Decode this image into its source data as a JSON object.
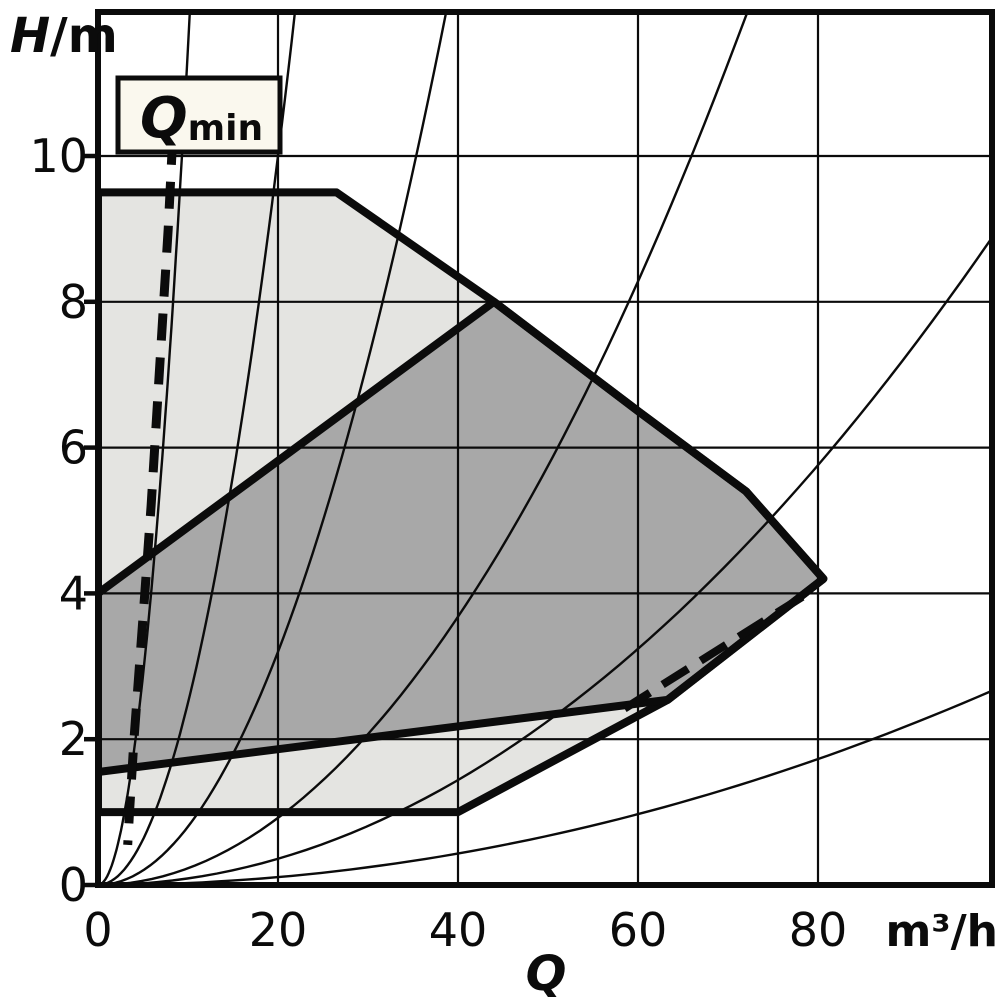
{
  "axes": {
    "y_title": {
      "symbol": "H",
      "unit": "/m"
    },
    "x_title": {
      "symbol": "Q",
      "unit": "m³/h"
    },
    "y_ticks": [
      0,
      2,
      4,
      6,
      8,
      10
    ],
    "x_ticks": [
      0,
      20,
      40,
      60,
      80
    ]
  },
  "qmin_label": {
    "symbol": "Q",
    "subscript": "min"
  },
  "chart_data": {
    "type": "area",
    "title": "",
    "x_axis": {
      "label": "Q",
      "unit": "m³/h",
      "range": [
        0,
        99.3
      ],
      "ticks": [
        0,
        20,
        40,
        60,
        80
      ],
      "grid": true
    },
    "y_axis": {
      "label": "H",
      "unit": "m",
      "range": [
        0,
        12
      ],
      "ticks": [
        0,
        2,
        4,
        6,
        8,
        10
      ],
      "grid": true
    },
    "regions": [
      {
        "name": "outer-operating-field",
        "fill": "#e4e4e1",
        "points": [
          [
            0,
            9.5
          ],
          [
            26.5,
            9.5
          ],
          [
            44,
            8
          ],
          [
            60,
            6.5
          ],
          [
            72,
            5.4
          ],
          [
            80.6,
            4.2
          ],
          [
            63.3,
            2.54
          ],
          [
            40,
            1
          ],
          [
            0,
            1
          ]
        ]
      },
      {
        "name": "inner-operating-field",
        "fill": "#a8a8a8",
        "points": [
          [
            0,
            4
          ],
          [
            44,
            8
          ],
          [
            60,
            6.5
          ],
          [
            72,
            5.4
          ],
          [
            80.6,
            4.2
          ],
          [
            63.3,
            2.54
          ],
          [
            0,
            1.55
          ]
        ]
      }
    ],
    "system_curves": {
      "model": "H = k * Q^2",
      "k_values": [
        0.115,
        0.025,
        0.008,
        0.0023,
        0.0009,
        0.00027
      ]
    },
    "qmin_curve_points": [
      [
        8.3,
        10.25
      ],
      [
        7.8,
        9.0
      ],
      [
        6.8,
        7.0
      ],
      [
        5.9,
        5.2
      ],
      [
        5.2,
        4.0
      ],
      [
        4.6,
        3.0
      ],
      [
        4.0,
        2.0
      ],
      [
        3.5,
        1.0
      ],
      [
        3.3,
        0.55
      ]
    ],
    "qmin_lower_segment": [
      [
        58.5,
        2.42
      ],
      [
        79.5,
        4.05
      ]
    ],
    "colors": {
      "outer_field": "#e4e4e1",
      "inner_field": "#a8a8a8",
      "line": "#0b0b0b",
      "grid": "#0b0b0b",
      "qmin_box_bg": "#faf8ee",
      "background": "#ffffff"
    }
  }
}
